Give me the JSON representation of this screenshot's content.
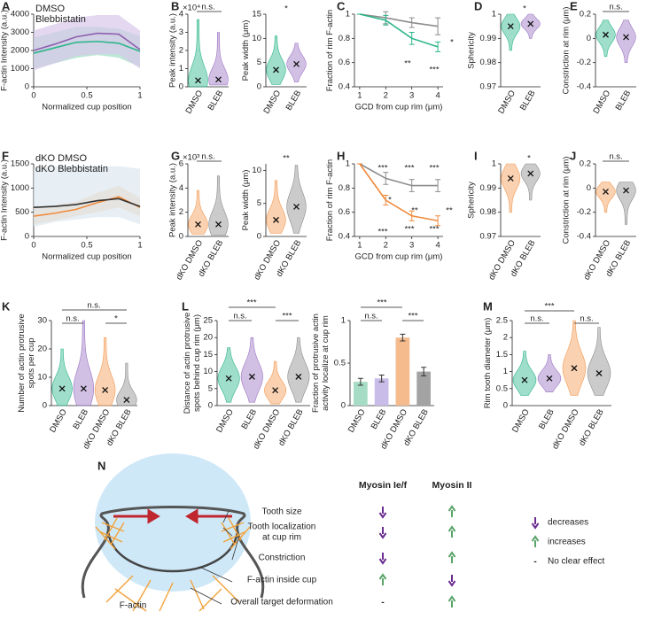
{
  "panel_labels": [
    "A",
    "B",
    "C",
    "D",
    "E",
    "F",
    "G",
    "H",
    "I",
    "J",
    "K",
    "L",
    "M",
    "N"
  ],
  "chart_data": [
    {
      "type": "line",
      "ylabel": "F-actin Intensity (a.u.)",
      "xlabel": "Normalized cup position",
      "x": [
        0,
        0.2,
        0.4,
        0.6,
        0.8,
        1
      ],
      "xlim": [
        0,
        1
      ],
      "xticks": [
        0,
        0.5,
        1
      ],
      "ylim": [
        0,
        4000
      ],
      "yticks": [
        0,
        1000,
        2000,
        3000,
        4000
      ],
      "legend": "upper left",
      "series": [
        {
          "name": "DMSO",
          "color": "#2bb58a",
          "band_color": "#9fdcc4",
          "values": [
            1850,
            2150,
            2450,
            2500,
            2400,
            1950
          ],
          "lower": [
            1000,
            1300,
            1600,
            1750,
            1600,
            1100
          ],
          "upper": [
            2700,
            3000,
            3300,
            3300,
            3200,
            2800
          ]
        },
        {
          "name": "Blebbistatin",
          "color": "#8e5fb0",
          "band_color": "#d8c8ea",
          "values": [
            2000,
            2350,
            2750,
            2950,
            2900,
            2050
          ],
          "lower": [
            900,
            1300,
            1700,
            1800,
            1800,
            1000
          ],
          "upper": [
            3100,
            3450,
            3800,
            3950,
            3950,
            3100
          ]
        }
      ]
    },
    {
      "type": "violin",
      "ylabel": "Peak intensity (a.u.)",
      "y_scale_label": "×10⁴",
      "categories": [
        "DMSO",
        "BLEB"
      ],
      "colors": [
        "#2bb58a",
        "#9b74c4"
      ],
      "values": [
        0.35,
        0.4
      ],
      "min": [
        0,
        0.1
      ],
      "max": [
        3.7,
        3.0
      ],
      "ylim": [
        0,
        4
      ],
      "yticks": [
        0,
        1,
        2,
        3,
        4
      ],
      "annotations": [
        {
          "text": "n.s.",
          "color": "#222"
        }
      ]
    },
    {
      "type": "violin",
      "ylabel": "Peak width (μm)",
      "categories": [
        "DMSO",
        "BLEB"
      ],
      "colors": [
        "#2bb58a",
        "#9b74c4"
      ],
      "values": [
        3.5,
        4.7
      ],
      "min": [
        0.5,
        1
      ],
      "max": [
        10.5,
        9
      ],
      "ylim": [
        0,
        15
      ],
      "yticks": [
        0,
        5,
        10,
        15
      ],
      "annotations": [
        {
          "text": "*",
          "color": "#222"
        }
      ]
    },
    {
      "type": "line",
      "ylabel": "Fraction of rim F-actin",
      "xlabel": "GCD from cup rim (μm)",
      "x": [
        1,
        2,
        3,
        4
      ],
      "xlim": [
        0.8,
        4.2
      ],
      "xticks": [
        1,
        2,
        3,
        4
      ],
      "ylim": [
        0.4,
        1
      ],
      "yticks": [
        0.4,
        0.6,
        0.8,
        1
      ],
      "series": [
        {
          "color": "#8c8c8c",
          "values": [
            1,
            0.97,
            0.93,
            0.9
          ],
          "errors": [
            0,
            0.05,
            0.04,
            0.07
          ]
        },
        {
          "color": "#2bb58a",
          "values": [
            1,
            0.95,
            0.8,
            0.73
          ],
          "errors": [
            0,
            0.04,
            0.05,
            0.04
          ]
        }
      ],
      "annotations": [
        {
          "text": "**",
          "color": "#2bb58a"
        },
        {
          "text": "***",
          "color": "#2bb58a"
        },
        {
          "text": "*",
          "color": "#222"
        }
      ]
    },
    {
      "type": "violin",
      "ylabel": "Sphericity",
      "categories": [
        "DMSO",
        "BLEB"
      ],
      "colors": [
        "#2bb58a",
        "#9b74c4"
      ],
      "values": [
        0.995,
        0.996
      ],
      "min": [
        0.985,
        0.99
      ],
      "max": [
        1,
        1
      ],
      "ylim": [
        0.97,
        1
      ],
      "yticks": [
        0.97,
        0.98,
        0.99,
        1
      ],
      "annotations": [
        {
          "text": "*",
          "color": "#222"
        }
      ]
    },
    {
      "type": "violin",
      "ylabel": "Constriction at rim (μm)",
      "categories": [
        "DMSO",
        "BLEB"
      ],
      "colors": [
        "#2bb58a",
        "#9b74c4"
      ],
      "values": [
        0.03,
        0.01
      ],
      "min": [
        -0.15,
        -0.2
      ],
      "max": [
        0.15,
        0.15
      ],
      "ylim": [
        -0.4,
        0.2
      ],
      "yticks": [
        -0.4,
        -0.2,
        0,
        0.2
      ],
      "annotations": [
        {
          "text": "n.s.",
          "color": "#222"
        }
      ]
    },
    {
      "type": "line",
      "ylabel": "F-actin Intensity (a.u.)",
      "xlabel": "Normalized cup position",
      "x": [
        0,
        0.2,
        0.4,
        0.6,
        0.8,
        1
      ],
      "xlim": [
        0,
        1
      ],
      "xticks": [
        0,
        0.5,
        1
      ],
      "ylim": [
        0,
        1500
      ],
      "yticks": [
        0,
        500,
        1000,
        1500
      ],
      "legend": "upper left",
      "series": [
        {
          "name": "dKO DMSO",
          "color": "#f08a3c",
          "band_color": "#f8c9a4",
          "values": [
            420,
            480,
            560,
            700,
            820,
            600
          ],
          "lower": [
            250,
            330,
            420,
            500,
            600,
            420
          ],
          "upper": [
            600,
            650,
            720,
            900,
            1050,
            800
          ]
        },
        {
          "name": "dKO Blebbistatin",
          "color": "#333333",
          "band_color": "#dde8f0",
          "values": [
            600,
            620,
            660,
            740,
            780,
            620
          ],
          "lower": [
            200,
            300,
            350,
            400,
            400,
            250
          ],
          "upper": [
            1400,
            1450,
            1450,
            1450,
            1450,
            1400
          ]
        }
      ]
    },
    {
      "type": "violin",
      "ylabel": "Peak intensity (a.u.)",
      "y_scale_label": "×10³",
      "categories": [
        "dKO DMSO",
        "dKO BLEB"
      ],
      "colors": [
        "#f39a52",
        "#8c8c8c"
      ],
      "values": [
        1,
        1
      ],
      "min": [
        0.2,
        0.1
      ],
      "max": [
        3.8,
        5
      ],
      "ylim": [
        0,
        6
      ],
      "yticks": [
        0,
        2,
        4,
        6
      ],
      "annotations": [
        {
          "text": "n.s.",
          "color": "#222"
        }
      ]
    },
    {
      "type": "violin",
      "ylabel": "Peak width (μm)",
      "categories": [
        "dKO DMSO",
        "dKO BLEB"
      ],
      "colors": [
        "#f39a52",
        "#8c8c8c"
      ],
      "values": [
        2.5,
        4.5
      ],
      "min": [
        0.5,
        0.5
      ],
      "max": [
        8.5,
        10.8
      ],
      "ylim": [
        0,
        11
      ],
      "yticks": [
        0,
        5,
        10
      ],
      "annotations": [
        {
          "text": "**",
          "color": "#222"
        }
      ]
    },
    {
      "type": "line",
      "ylabel": "Fraction of rim F-actin",
      "xlabel": "GCD from cup rim (μm)",
      "x": [
        1,
        2,
        3,
        4
      ],
      "xlim": [
        0.8,
        4.2
      ],
      "xticks": [
        1,
        2,
        3,
        4
      ],
      "ylim": [
        0.4,
        1
      ],
      "yticks": [
        0.4,
        0.6,
        0.8,
        1
      ],
      "series": [
        {
          "color": "#8c8c8c",
          "values": [
            1,
            0.88,
            0.82,
            0.82
          ],
          "errors": [
            0,
            0.05,
            0.05,
            0.05
          ]
        },
        {
          "color": "#f08a3c",
          "values": [
            1,
            0.7,
            0.57,
            0.53
          ],
          "errors": [
            0,
            0.04,
            0.04,
            0.04
          ]
        }
      ],
      "annotations": [
        {
          "text": "***",
          "color": "#8c8c8c"
        },
        {
          "text": "***",
          "color": "#8c8c8c"
        },
        {
          "text": "***",
          "color": "#8c8c8c"
        },
        {
          "text": "***",
          "color": "#f08a3c"
        },
        {
          "text": "***",
          "color": "#f08a3c"
        },
        {
          "text": "***",
          "color": "#f08a3c"
        },
        {
          "text": "*",
          "color": "#222"
        },
        {
          "text": "**",
          "color": "#222"
        },
        {
          "text": "**",
          "color": "#222"
        }
      ]
    },
    {
      "type": "violin",
      "ylabel": "Sphericity",
      "categories": [
        "dKO DMSO",
        "dKO BLEB"
      ],
      "colors": [
        "#f39a52",
        "#8c8c8c"
      ],
      "values": [
        0.994,
        0.996
      ],
      "min": [
        0.98,
        0.985
      ],
      "max": [
        1,
        1
      ],
      "ylim": [
        0.97,
        1
      ],
      "yticks": [
        0.97,
        0.98,
        0.99,
        1
      ],
      "annotations": [
        {
          "text": "*",
          "color": "#222"
        }
      ]
    },
    {
      "type": "violin",
      "ylabel": "Constriction at rim (μm)",
      "categories": [
        "dKO DMSO",
        "dKO BLEB"
      ],
      "colors": [
        "#f39a52",
        "#8c8c8c"
      ],
      "values": [
        -0.03,
        -0.02
      ],
      "min": [
        -0.2,
        -0.3
      ],
      "max": [
        0.05,
        0.05
      ],
      "ylim": [
        -0.4,
        0.2
      ],
      "yticks": [
        -0.4,
        -0.2,
        0,
        0.2
      ],
      "annotations": [
        {
          "text": "n.s.",
          "color": "#222"
        }
      ]
    },
    {
      "type": "violin",
      "ylabel": [
        "Number of actin protrusive",
        "spots per cup"
      ],
      "categories": [
        "DMSO",
        "BLEB",
        "dKO DMSO",
        "dKO BLEB"
      ],
      "colors": [
        "#2bb58a",
        "#9b74c4",
        "#f39a52",
        "#8c8c8c"
      ],
      "values": [
        6,
        6,
        5.5,
        2
      ],
      "min": [
        0,
        0,
        0,
        0
      ],
      "max": [
        20,
        30,
        24,
        15
      ],
      "ylim": [
        0,
        30
      ],
      "yticks": [
        0,
        10,
        20,
        30
      ],
      "annotations": [
        {
          "text": "n.s.",
          "color": "#222"
        },
        {
          "text": "n.s.",
          "color": "#222"
        },
        {
          "text": "*",
          "color": "#222"
        }
      ]
    },
    {
      "type": "violin",
      "ylabel": [
        "Distance of actin protrusive",
        "spots behind cup rim (μm)"
      ],
      "categories": [
        "DMSO",
        "BLEB",
        "dKO DMSO",
        "dKO BLEB"
      ],
      "colors": [
        "#2bb58a",
        "#9b74c4",
        "#f39a52",
        "#8c8c8c"
      ],
      "values": [
        8,
        8.5,
        4.5,
        8.5
      ],
      "min": [
        1,
        1,
        0.5,
        1
      ],
      "max": [
        17,
        20,
        13,
        20
      ],
      "ylim": [
        0,
        25
      ],
      "yticks": [
        0,
        5,
        10,
        15,
        20,
        25
      ],
      "annotations": [
        {
          "text": "***",
          "color": "#222"
        },
        {
          "text": "n.s.",
          "color": "#222"
        },
        {
          "text": "***",
          "color": "#222"
        }
      ]
    },
    {
      "type": "bar",
      "ylabel": [
        "Fraction of protrusive actin",
        "activity localize at cup rim"
      ],
      "categories": [
        "DMSO",
        "BLEB",
        "dKO DMSO",
        "dKO BLEB"
      ],
      "colors": [
        "#a6dcc5",
        "#c9bce8",
        "#f5bb8d",
        "#a3a3a3"
      ],
      "values": [
        0.28,
        0.32,
        0.8,
        0.4
      ],
      "errors": [
        0.04,
        0.04,
        0.04,
        0.05
      ],
      "ylim": [
        0,
        1
      ],
      "yticks": [
        0,
        0.5,
        1
      ],
      "annotations": [
        {
          "text": "***",
          "color": "#222"
        },
        {
          "text": "n.s.",
          "color": "#222"
        },
        {
          "text": "***",
          "color": "#222"
        }
      ]
    },
    {
      "type": "violin",
      "ylabel": "Rim tooth diameter (μm)",
      "categories": [
        "DMSO",
        "BLEB",
        "dKO DMSO",
        "dKO BLEB"
      ],
      "colors": [
        "#2bb58a",
        "#9b74c4",
        "#f39a52",
        "#8c8c8c"
      ],
      "values": [
        0.75,
        0.8,
        1.1,
        0.95
      ],
      "min": [
        0.3,
        0.4,
        0.3,
        0.3
      ],
      "max": [
        1.6,
        1.5,
        2.5,
        2.3
      ],
      "ylim": [
        0,
        2.5
      ],
      "yticks": [
        0,
        0.5,
        1,
        1.5,
        2,
        2.5
      ],
      "annotations": [
        {
          "text": "***",
          "color": "#222"
        },
        {
          "text": "n.s.",
          "color": "#222"
        },
        {
          "text": "n.s.",
          "color": "#222"
        }
      ]
    }
  ],
  "diagram": {
    "columns": [
      "Myosin Ie/f",
      "Myosin II"
    ],
    "rows": [
      [
        "Tooth size"
      ],
      [
        "Tooth localization",
        "at cup rim"
      ],
      [
        "Constriction"
      ],
      [
        "F-actin inside cup"
      ],
      [
        "Overall target deformation"
      ]
    ],
    "no_effect_symbol": "-",
    "legend": [
      "decreases",
      "increases",
      "No clear effect"
    ],
    "structure_label": "F-actin"
  }
}
